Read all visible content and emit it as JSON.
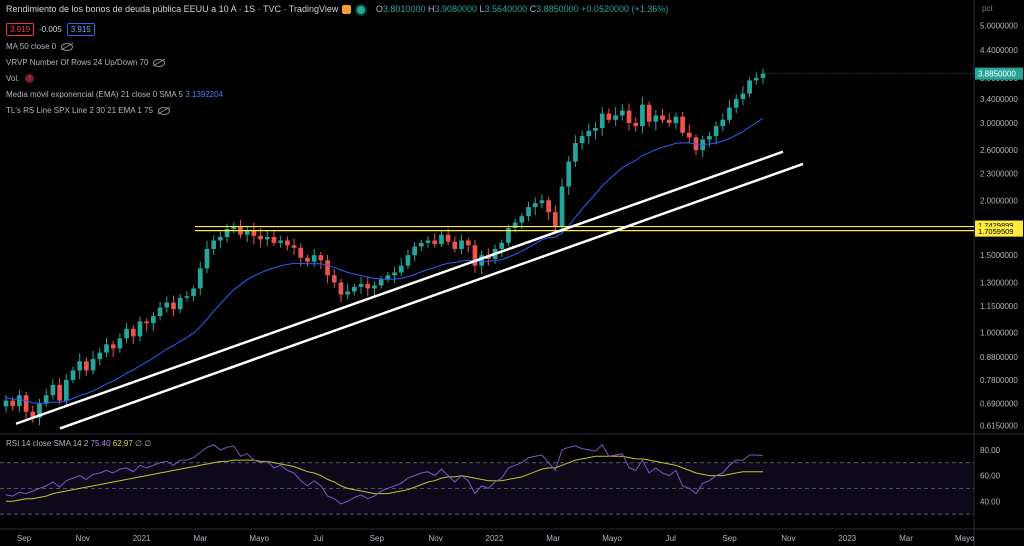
{
  "header": {
    "title": "Rendimiento de los bonos de deuda pública EEUU a 10 A · 1S · TVC · TradingView",
    "ohlc": [
      {
        "k": "O",
        "v": "3.8010000"
      },
      {
        "k": "H",
        "v": "3.9080000"
      },
      {
        "k": "L",
        "v": "3.5640000"
      },
      {
        "k": "C",
        "v": "3.8850000"
      }
    ],
    "change": "+0.0520000 (+1.36%)",
    "sell_price": "3.919",
    "spread": "-0.005",
    "buy_price": "3.915"
  },
  "indicators": [
    {
      "label": "MA 50 close 0",
      "hidden": true
    },
    {
      "label": "VRVP Number Of Rows 24 Up/Down 70",
      "hidden": true
    },
    {
      "label": "Vol.",
      "warning": true
    },
    {
      "label": "Media móvil exponencial (EMA) 21 close 0 SMA 5",
      "value": "3.1392204"
    },
    {
      "label": "TL's RS Line SPX Line 2 30 21 EMA 1 75",
      "hidden": true
    }
  ],
  "rsi_legend": {
    "label": "RSI 14 close SMA 14 2",
    "rsi": "75.40",
    "sma": "62.97",
    "extra": "∅ ∅"
  },
  "scale_label": "pct",
  "colors": {
    "up": "#26a69a",
    "down": "#ef5350",
    "ema": "#2962ff",
    "hline": "#ffeb3b",
    "trendline": "#ffffff",
    "rsi": "#7e57c2",
    "rsi_ma": "#c5c22c"
  },
  "chart_data": [
    {
      "type": "candlestick",
      "scale": "log",
      "ylim": [
        0.6,
        5.2
      ],
      "price_ticks": [
        "5.0000000",
        "4.4000000",
        "3.8000000",
        "3.4000000",
        "3.0000000",
        "2.6000000",
        "2.3000000",
        "2.0000000",
        "1.5000000",
        "1.3000000",
        "1.1500000",
        "1.0000000",
        "0.8800000",
        "0.7800000",
        "0.6900000",
        "0.6150000"
      ],
      "price_tick_values": [
        5.0,
        4.4,
        3.8,
        3.4,
        3.0,
        2.6,
        2.3,
        2.0,
        1.5,
        1.3,
        1.15,
        1.0,
        0.88,
        0.78,
        0.69,
        0.615
      ],
      "last_price": {
        "value": 3.885,
        "label": "3.8850000"
      },
      "hlines": [
        {
          "value": 1.7429899,
          "label": "1.7429899"
        },
        {
          "value": 1.7059509,
          "label": "1.7059509"
        }
      ],
      "x_labels": [
        "Sep",
        "Nov",
        "2021",
        "Mar",
        "Mayo",
        "Jul",
        "Sep",
        "Nov",
        "2022",
        "Mar",
        "Mayo",
        "Jul",
        "Sep",
        "Nov",
        "2023",
        "Mar",
        "Mayo"
      ],
      "closes": [
        0.7,
        0.68,
        0.72,
        0.66,
        0.64,
        0.69,
        0.72,
        0.76,
        0.7,
        0.78,
        0.82,
        0.86,
        0.82,
        0.87,
        0.9,
        0.94,
        0.92,
        0.97,
        1.02,
        0.98,
        1.06,
        1.05,
        1.09,
        1.14,
        1.17,
        1.13,
        1.2,
        1.21,
        1.26,
        1.4,
        1.55,
        1.62,
        1.65,
        1.72,
        1.74,
        1.67,
        1.71,
        1.66,
        1.63,
        1.65,
        1.6,
        1.62,
        1.58,
        1.56,
        1.48,
        1.45,
        1.5,
        1.46,
        1.35,
        1.3,
        1.22,
        1.24,
        1.27,
        1.29,
        1.26,
        1.28,
        1.32,
        1.35,
        1.37,
        1.42,
        1.5,
        1.57,
        1.6,
        1.62,
        1.59,
        1.67,
        1.61,
        1.55,
        1.62,
        1.58,
        1.42,
        1.5,
        1.47,
        1.55,
        1.6,
        1.73,
        1.78,
        1.84,
        1.93,
        1.97,
        2.0,
        1.88,
        1.74,
        2.15,
        2.45,
        2.7,
        2.8,
        2.88,
        2.92,
        3.15,
        3.05,
        3.12,
        3.2,
        3.0,
        2.95,
        3.3,
        3.02,
        3.12,
        3.05,
        3.0,
        3.1,
        2.85,
        2.78,
        2.6,
        2.75,
        2.8,
        2.95,
        3.05,
        3.25,
        3.4,
        3.5,
        3.75,
        3.8,
        3.885
      ],
      "ema21_value": 3.1392204
    },
    {
      "type": "line",
      "name": "RSI 14",
      "ylim": [
        20,
        90
      ],
      "ticks": [
        80,
        60,
        40
      ],
      "tick_labels": [
        "80.00",
        "60.00",
        "40.00"
      ],
      "bands": [
        70,
        50,
        30
      ],
      "series": [
        {
          "name": "RSI",
          "values": [
            45,
            44,
            47,
            46,
            48,
            50,
            52,
            55,
            51,
            56,
            58,
            60,
            57,
            61,
            62,
            64,
            62,
            65,
            66,
            63,
            68,
            66,
            68,
            70,
            71,
            68,
            72,
            72,
            74,
            78,
            82,
            84,
            80,
            82,
            83,
            75,
            77,
            72,
            70,
            71,
            66,
            68,
            64,
            62,
            56,
            52,
            56,
            52,
            44,
            42,
            38,
            40,
            43,
            45,
            42,
            44,
            48,
            50,
            52,
            54,
            58,
            60,
            62,
            63,
            60,
            65,
            60,
            55,
            60,
            56,
            46,
            52,
            50,
            55,
            58,
            66,
            68,
            70,
            74,
            75,
            76,
            70,
            64,
            80,
            82,
            83,
            81,
            80,
            79,
            84,
            75,
            76,
            77,
            66,
            64,
            72,
            62,
            66,
            62,
            60,
            64,
            52,
            50,
            46,
            54,
            56,
            60,
            62,
            68,
            72,
            72,
            76,
            76,
            75.4
          ]
        },
        {
          "name": "RSI MA",
          "values": [
            40,
            40,
            41,
            42,
            42,
            43,
            44,
            46,
            47,
            48,
            49,
            50,
            51,
            52,
            53,
            54,
            55,
            56,
            57,
            58,
            59,
            60,
            61,
            62,
            63,
            64,
            65,
            66,
            67,
            68,
            69,
            70,
            71,
            71,
            72,
            72,
            72,
            72,
            71,
            71,
            70,
            69,
            68,
            67,
            65,
            63,
            62,
            60,
            57,
            55,
            52,
            50,
            49,
            48,
            47,
            46,
            46,
            46,
            47,
            48,
            49,
            51,
            53,
            55,
            56,
            58,
            59,
            59,
            60,
            59,
            58,
            57,
            56,
            56,
            56,
            57,
            58,
            59,
            61,
            63,
            65,
            66,
            66,
            68,
            70,
            72,
            73,
            74,
            75,
            75,
            75,
            75,
            75,
            74,
            73,
            73,
            72,
            71,
            70,
            69,
            68,
            66,
            64,
            62,
            61,
            60,
            60,
            60,
            61,
            62,
            63,
            63,
            63,
            62.97
          ]
        }
      ]
    }
  ]
}
